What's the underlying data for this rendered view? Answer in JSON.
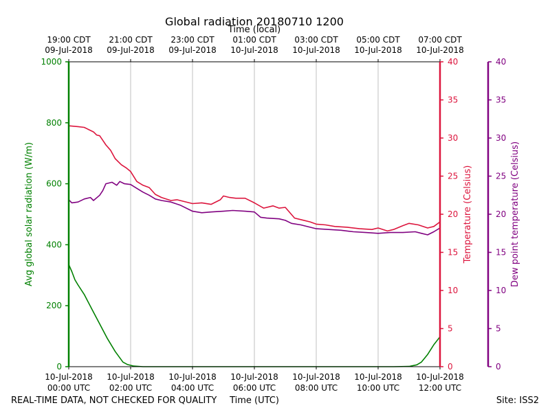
{
  "chart_data": {
    "type": "line",
    "title": "Global radiation 20180710 1200",
    "top_xlabel": "Time (local)",
    "xlabel": "Time (UTC)",
    "footer_left": "REAL-TIME DATA, NOT CHECKED FOR QUALITY",
    "footer_right": "Site: ISS2",
    "grid": "vertical",
    "x_unit": "hours since 2018-07-10 00:00 UTC",
    "xlim": [
      0,
      12
    ],
    "x_ticks": [
      0,
      2,
      4,
      6,
      8,
      10,
      12
    ],
    "x_tick_labels_utc": [
      [
        "10-Jul-2018",
        "00:00 UTC"
      ],
      [
        "10-Jul-2018",
        "02:00 UTC"
      ],
      [
        "10-Jul-2018",
        "04:00 UTC"
      ],
      [
        "10-Jul-2018",
        "06:00 UTC"
      ],
      [
        "10-Jul-2018",
        "08:00 UTC"
      ],
      [
        "10-Jul-2018",
        "10:00 UTC"
      ],
      [
        "10-Jul-2018",
        "12:00 UTC"
      ]
    ],
    "x_tick_labels_local": [
      [
        "19:00 CDT",
        "09-Jul-2018"
      ],
      [
        "21:00 CDT",
        "09-Jul-2018"
      ],
      [
        "23:00 CDT",
        "09-Jul-2018"
      ],
      [
        "01:00 CDT",
        "10-Jul-2018"
      ],
      [
        "03:00 CDT",
        "10-Jul-2018"
      ],
      [
        "05:00 CDT",
        "10-Jul-2018"
      ],
      [
        "07:00 CDT",
        "10-Jul-2018"
      ]
    ],
    "axes": {
      "radiation": {
        "label": "Avg global solar radiation (W/m)",
        "color": "#008000",
        "ylim": [
          0,
          1000
        ],
        "ticks": [
          0,
          200,
          400,
          600,
          800,
          1000
        ]
      },
      "temperature": {
        "label": "Temperature (Celsius)",
        "color": "#dc143c",
        "ylim": [
          0,
          40
        ],
        "ticks": [
          0,
          5,
          10,
          15,
          20,
          25,
          30,
          35,
          40
        ]
      },
      "dewpoint": {
        "label": "Dew point temperature (Celsius)",
        "color": "#800080",
        "ylim": [
          0,
          40
        ],
        "ticks": [
          0,
          5,
          10,
          15,
          20,
          25,
          30,
          35,
          40
        ]
      }
    },
    "series": [
      {
        "axis": "radiation",
        "color": "#008000",
        "x": [
          0,
          0.1,
          0.2,
          0.3,
          0.5,
          0.75,
          1.0,
          1.25,
          1.5,
          1.75,
          1.9,
          2.1,
          2.4,
          3.0,
          5.0,
          8.0,
          10.5,
          11.0,
          11.25,
          11.4,
          11.6,
          11.8,
          12.0
        ],
        "values": [
          335,
          312,
          285,
          268,
          237,
          188,
          140,
          92,
          50,
          15,
          7,
          2,
          0,
          0,
          0,
          0,
          0,
          1,
          6,
          15,
          40,
          72,
          98
        ]
      },
      {
        "axis": "temperature",
        "color": "#dc143c",
        "x": [
          0,
          0.3,
          0.5,
          0.6,
          0.8,
          0.9,
          1.0,
          1.1,
          1.2,
          1.35,
          1.5,
          1.7,
          1.85,
          2.0,
          2.2,
          2.4,
          2.6,
          2.8,
          3.0,
          3.3,
          3.5,
          4.0,
          4.3,
          4.6,
          4.9,
          5.0,
          5.2,
          5.4,
          5.7,
          6.0,
          6.3,
          6.6,
          6.8,
          7.0,
          7.3,
          7.5,
          7.8,
          8.0,
          8.3,
          8.6,
          9.0,
          9.4,
          9.8,
          10.0,
          10.3,
          10.5,
          10.8,
          11.0,
          11.3,
          11.6,
          11.8,
          12.0
        ],
        "values": [
          31.6,
          31.5,
          31.4,
          31.2,
          30.8,
          30.4,
          30.3,
          29.7,
          29.1,
          28.4,
          27.3,
          26.5,
          26.1,
          25.6,
          24.3,
          23.8,
          23.5,
          22.6,
          22.2,
          21.8,
          21.9,
          21.4,
          21.5,
          21.3,
          21.9,
          22.4,
          22.2,
          22.1,
          22.1,
          21.5,
          20.8,
          21.1,
          20.8,
          20.9,
          19.5,
          19.3,
          19.0,
          18.7,
          18.6,
          18.4,
          18.3,
          18.1,
          18.0,
          18.2,
          17.8,
          18.0,
          18.5,
          18.8,
          18.6,
          18.2,
          18.4,
          19.0
        ]
      },
      {
        "axis": "dewpoint",
        "color": "#800080",
        "x": [
          0,
          0.1,
          0.3,
          0.5,
          0.7,
          0.8,
          1.0,
          1.1,
          1.2,
          1.4,
          1.55,
          1.65,
          1.8,
          2.0,
          2.2,
          2.4,
          2.6,
          2.8,
          3.0,
          3.3,
          3.6,
          4.0,
          4.3,
          4.6,
          5.0,
          5.3,
          5.7,
          6.0,
          6.2,
          6.4,
          6.8,
          7.0,
          7.2,
          7.5,
          7.8,
          8.0,
          8.4,
          8.8,
          9.2,
          9.6,
          10.0,
          10.4,
          10.8,
          11.2,
          11.4,
          11.6,
          11.8,
          12.0
        ],
        "values": [
          21.9,
          21.5,
          21.6,
          22.0,
          22.2,
          21.8,
          22.5,
          23.1,
          24.0,
          24.2,
          23.8,
          24.3,
          24.0,
          23.9,
          23.4,
          22.9,
          22.5,
          22.0,
          21.8,
          21.6,
          21.2,
          20.4,
          20.2,
          20.3,
          20.4,
          20.5,
          20.4,
          20.3,
          19.6,
          19.5,
          19.4,
          19.2,
          18.8,
          18.6,
          18.3,
          18.1,
          18.0,
          17.9,
          17.7,
          17.6,
          17.5,
          17.6,
          17.6,
          17.7,
          17.5,
          17.3,
          17.7,
          18.2
        ]
      }
    ]
  }
}
